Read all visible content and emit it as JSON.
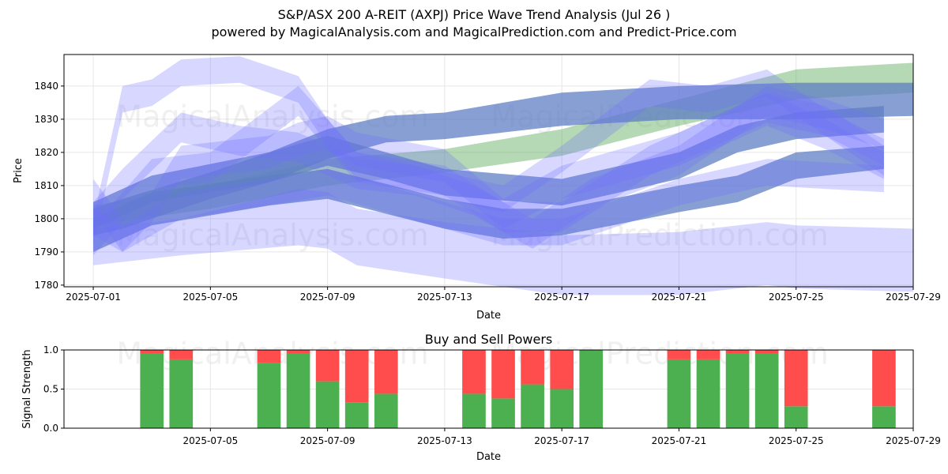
{
  "title": "S&P/ASX 200 A-REIT (AXPJ) Price Wave Trend Analysis (Jul 26 )",
  "subtitle": "powered by MagicalAnalysis.com and MagicalPrediction.com and Predict-Price.com",
  "watermarks": [
    "MagicalAnalysis.com",
    "MagicalPrediction.com"
  ],
  "colors": {
    "buy": "#4caf50",
    "sell": "#ff4c4c",
    "wave": "#6f6fff",
    "trend": "#5aa85a",
    "mean": "#5f7fc4"
  },
  "chart_data": [
    {
      "type": "area",
      "name": "price-wave",
      "xlabel": "Date",
      "ylabel": "Price",
      "xlim": [
        "2025-06-30",
        "2025-07-29"
      ],
      "ylim": [
        1779.5,
        1849.5
      ],
      "yticks": [
        1780,
        1790,
        1800,
        1810,
        1820,
        1830,
        1840
      ],
      "xticks": [
        "2025-07-01",
        "2025-07-05",
        "2025-07-09",
        "2025-07-13",
        "2025-07-17",
        "2025-07-21",
        "2025-07-25",
        "2025-07-29"
      ],
      "grid": true,
      "bands": [
        {
          "kind": "green",
          "x": [
            "2025-07-01",
            "2025-07-05",
            "2025-07-09",
            "2025-07-13",
            "2025-07-17",
            "2025-07-21",
            "2025-07-25",
            "2025-07-29"
          ],
          "upper": [
            1804,
            1810,
            1818,
            1821,
            1827,
            1836,
            1845,
            1847
          ],
          "lower": [
            1798,
            1803,
            1810,
            1814,
            1819,
            1828,
            1836,
            1838
          ]
        },
        {
          "kind": "dark",
          "x": [
            "2025-07-01",
            "2025-07-02",
            "2025-07-05",
            "2025-07-07",
            "2025-07-09",
            "2025-07-11",
            "2025-07-13",
            "2025-07-17",
            "2025-07-21",
            "2025-07-25",
            "2025-07-29"
          ],
          "upper": [
            1803,
            1806,
            1814,
            1820,
            1827,
            1831,
            1832,
            1838,
            1840,
            1841,
            1841
          ],
          "lower": [
            1795,
            1797,
            1806,
            1811,
            1818,
            1823,
            1824,
            1828,
            1830,
            1830,
            1831
          ]
        },
        {
          "kind": "dark",
          "x": [
            "2025-07-01",
            "2025-07-03",
            "2025-07-07",
            "2025-07-09",
            "2025-07-11",
            "2025-07-13",
            "2025-07-17",
            "2025-07-21",
            "2025-07-23",
            "2025-07-25",
            "2025-07-28"
          ],
          "upper": [
            1805,
            1813,
            1820,
            1825,
            1820,
            1815,
            1812,
            1820,
            1828,
            1832,
            1834
          ],
          "lower": [
            1797,
            1805,
            1811,
            1816,
            1812,
            1807,
            1804,
            1812,
            1820,
            1824,
            1826
          ]
        },
        {
          "kind": "dark",
          "x": [
            "2025-07-01",
            "2025-07-03",
            "2025-07-07",
            "2025-07-09",
            "2025-07-13",
            "2025-07-15",
            "2025-07-17",
            "2025-07-21",
            "2025-07-23",
            "2025-07-25",
            "2025-07-28"
          ],
          "upper": [
            1800,
            1808,
            1813,
            1815,
            1806,
            1803,
            1803,
            1810,
            1813,
            1820,
            1822
          ],
          "lower": [
            1790,
            1798,
            1804,
            1806,
            1797,
            1794,
            1795,
            1802,
            1805,
            1812,
            1815
          ]
        },
        {
          "kind": "wave",
          "x": [
            "2025-07-01",
            "2025-07-04",
            "2025-07-08",
            "2025-07-09",
            "2025-07-10",
            "2025-07-13",
            "2025-07-17",
            "2025-07-21",
            "2025-07-24",
            "2025-07-25",
            "2025-07-29"
          ],
          "upper": [
            1797,
            1800,
            1809,
            1808,
            1803,
            1799,
            1795,
            1796,
            1799,
            1798,
            1797
          ],
          "lower": [
            1786,
            1789,
            1792,
            1791,
            1786,
            1782,
            1777,
            1777,
            1780,
            1779,
            1778
          ]
        },
        {
          "kind": "wave",
          "x": [
            "2025-07-01",
            "2025-07-02",
            "2025-07-03",
            "2025-07-04",
            "2025-07-07",
            "2025-07-08",
            "2025-07-09",
            "2025-07-10",
            "2025-07-13",
            "2025-07-15",
            "2025-07-17",
            "2025-07-21",
            "2025-07-24",
            "2025-07-26",
            "2025-07-28"
          ],
          "upper": [
            1812,
            1800,
            1808,
            1822,
            1825,
            1829,
            1831,
            1826,
            1821,
            1806,
            1816,
            1826,
            1838,
            1830,
            1820
          ],
          "lower": [
            1802,
            1790,
            1799,
            1812,
            1815,
            1819,
            1821,
            1816,
            1811,
            1797,
            1806,
            1816,
            1828,
            1821,
            1812
          ]
        },
        {
          "kind": "wave",
          "x": [
            "2025-07-01",
            "2025-07-02",
            "2025-07-03",
            "2025-07-04",
            "2025-07-06",
            "2025-07-08",
            "2025-07-09",
            "2025-07-10",
            "2025-07-12",
            "2025-07-15",
            "2025-07-17",
            "2025-07-20",
            "2025-07-22",
            "2025-07-24",
            "2025-07-26",
            "2025-07-28"
          ],
          "upper": [
            1800,
            1840,
            1842,
            1848,
            1849,
            1843,
            1830,
            1820,
            1816,
            1810,
            1822,
            1842,
            1840,
            1845,
            1833,
            1824
          ],
          "lower": [
            1792,
            1832,
            1834,
            1840,
            1841,
            1835,
            1822,
            1812,
            1808,
            1802,
            1814,
            1834,
            1832,
            1837,
            1825,
            1816
          ]
        },
        {
          "kind": "wave",
          "x": [
            "2025-07-01",
            "2025-07-02",
            "2025-07-04",
            "2025-07-06",
            "2025-07-08",
            "2025-07-10",
            "2025-07-12",
            "2025-07-14",
            "2025-07-16",
            "2025-07-18",
            "2025-07-21",
            "2025-07-24",
            "2025-07-26",
            "2025-07-28"
          ],
          "upper": [
            1805,
            1815,
            1832,
            1828,
            1826,
            1818,
            1816,
            1810,
            1800,
            1812,
            1822,
            1840,
            1836,
            1830
          ],
          "lower": [
            1796,
            1806,
            1823,
            1819,
            1817,
            1809,
            1807,
            1801,
            1791,
            1803,
            1813,
            1831,
            1827,
            1821
          ]
        },
        {
          "kind": "wave",
          "x": [
            "2025-07-01",
            "2025-07-03",
            "2025-07-05",
            "2025-07-08",
            "2025-07-10",
            "2025-07-13",
            "2025-07-15",
            "2025-07-17",
            "2025-07-20",
            "2025-07-22",
            "2025-07-24",
            "2025-07-26",
            "2025-07-28"
          ],
          "upper": [
            1798,
            1818,
            1820,
            1840,
            1820,
            1816,
            1805,
            1805,
            1822,
            1830,
            1838,
            1834,
            1822
          ],
          "lower": [
            1789,
            1809,
            1811,
            1831,
            1811,
            1807,
            1796,
            1796,
            1813,
            1821,
            1829,
            1825,
            1813
          ]
        },
        {
          "kind": "wave",
          "x": [
            "2025-07-01",
            "2025-07-02",
            "2025-07-04",
            "2025-07-07",
            "2025-07-09",
            "2025-07-11",
            "2025-07-13",
            "2025-07-15",
            "2025-07-17",
            "2025-07-21",
            "2025-07-24",
            "2025-07-28"
          ],
          "upper": [
            1803,
            1798,
            1808,
            1812,
            1815,
            1810,
            1805,
            1800,
            1800,
            1812,
            1818,
            1816
          ],
          "lower": [
            1795,
            1790,
            1800,
            1804,
            1807,
            1802,
            1797,
            1792,
            1792,
            1804,
            1810,
            1808
          ]
        }
      ]
    },
    {
      "type": "bar",
      "name": "buy-sell-powers",
      "title": "Buy and Sell Powers",
      "xlabel": "Date",
      "ylabel": "Signal Strength",
      "ylim": [
        0,
        1
      ],
      "yticks": [
        "0.0",
        "0.5",
        "1.0"
      ],
      "xticks": [
        "2025-07-05",
        "2025-07-09",
        "2025-07-13",
        "2025-07-17",
        "2025-07-21",
        "2025-07-25",
        "2025-07-29"
      ],
      "x": [
        "2025-07-03",
        "2025-07-04",
        "2025-07-07",
        "2025-07-08",
        "2025-07-09",
        "2025-07-10",
        "2025-07-11",
        "2025-07-14",
        "2025-07-15",
        "2025-07-16",
        "2025-07-17",
        "2025-07-18",
        "2025-07-21",
        "2025-07-22",
        "2025-07-23",
        "2025-07-24",
        "2025-07-25",
        "2025-07-28"
      ],
      "series": [
        {
          "name": "buy",
          "values": [
            0.95,
            0.88,
            0.83,
            0.95,
            0.6,
            0.33,
            0.44,
            0.44,
            0.38,
            0.56,
            0.5,
            1.0,
            0.88,
            0.88,
            0.95,
            0.95,
            0.28,
            0.28
          ]
        },
        {
          "name": "sell",
          "values": [
            0.05,
            0.12,
            0.17,
            0.05,
            0.4,
            0.67,
            0.56,
            0.56,
            0.62,
            0.44,
            0.5,
            0.0,
            0.12,
            0.12,
            0.05,
            0.05,
            0.72,
            0.72
          ]
        }
      ]
    }
  ]
}
